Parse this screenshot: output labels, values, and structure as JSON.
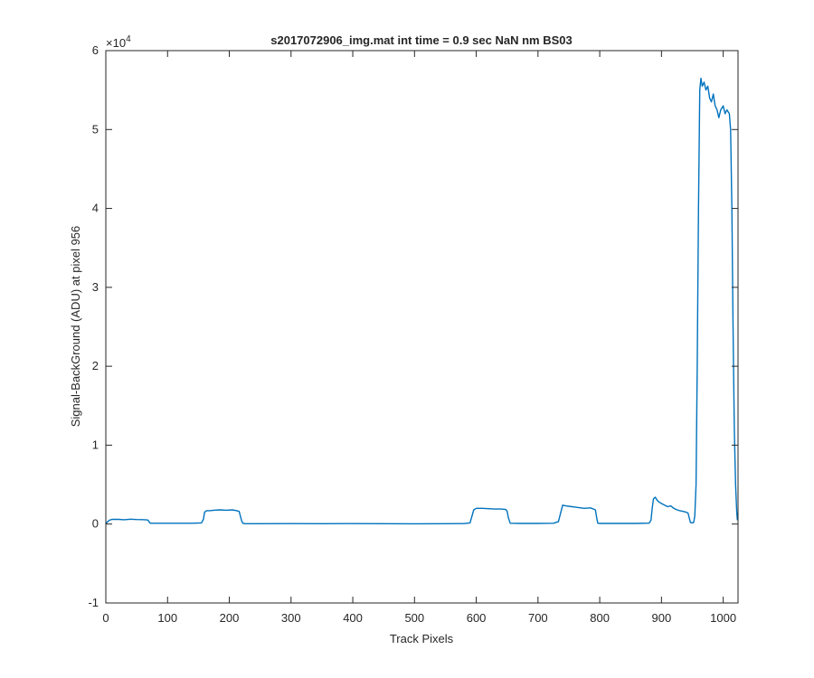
{
  "chart_data": {
    "type": "line",
    "title": "s2017072906_img.mat int time = 0.9 sec  NaN nm BS03",
    "xlabel": "Track Pixels",
    "ylabel": "Signal-BackGround (ADU) at pixel 956",
    "xlim": [
      0,
      1024
    ],
    "ylim": [
      -10000,
      60000
    ],
    "y_exponent_label": "×10",
    "y_exponent_power": "4",
    "xticks": [
      0,
      100,
      200,
      300,
      400,
      500,
      600,
      700,
      800,
      900,
      1000
    ],
    "xtick_labels": [
      "0",
      "100",
      "200",
      "300",
      "400",
      "500",
      "600",
      "700",
      "800",
      "900",
      "1000"
    ],
    "yticks": [
      -10000,
      0,
      10000,
      20000,
      30000,
      40000,
      50000,
      60000
    ],
    "ytick_labels": [
      "-1",
      "0",
      "1",
      "2",
      "3",
      "4",
      "5",
      "6"
    ],
    "grid": false,
    "line_color": "#0072BD",
    "series": [
      {
        "name": "",
        "x": [
          0,
          3,
          6,
          10,
          20,
          30,
          40,
          50,
          60,
          68,
          70,
          72,
          75,
          80,
          100,
          120,
          140,
          155,
          158,
          160,
          163,
          168,
          175,
          185,
          195,
          205,
          212,
          216,
          218,
          220,
          222,
          225,
          235,
          250,
          300,
          350,
          400,
          450,
          500,
          550,
          580,
          590,
          593,
          596,
          600,
          610,
          620,
          630,
          640,
          648,
          650,
          652,
          655,
          670,
          700,
          725,
          733,
          737,
          740,
          745,
          755,
          765,
          775,
          785,
          793,
          795,
          797,
          800,
          830,
          860,
          880,
          883,
          885,
          887,
          890,
          893,
          896,
          900,
          905,
          910,
          915,
          920,
          925,
          930,
          935,
          940,
          943,
          947,
          950,
          952,
          954,
          956,
          958,
          960,
          962,
          964,
          966,
          969,
          972,
          975,
          978,
          981,
          984,
          987,
          990,
          993,
          996,
          1000,
          1003,
          1006,
          1010,
          1012,
          1014,
          1016,
          1018,
          1020,
          1022,
          1023
        ],
        "y": [
          0,
          300,
          500,
          600,
          600,
          550,
          620,
          580,
          560,
          520,
          300,
          100,
          100,
          100,
          100,
          100,
          100,
          150,
          600,
          1500,
          1700,
          1700,
          1750,
          1800,
          1750,
          1800,
          1700,
          1600,
          1000,
          400,
          100,
          50,
          50,
          50,
          60,
          50,
          60,
          50,
          40,
          50,
          60,
          150,
          1000,
          1800,
          2000,
          2000,
          1950,
          1900,
          1900,
          1850,
          1600,
          800,
          100,
          80,
          80,
          100,
          300,
          1500,
          2400,
          2300,
          2200,
          2100,
          2000,
          2050,
          1800,
          800,
          100,
          80,
          80,
          80,
          120,
          500,
          2000,
          3200,
          3400,
          3000,
          2800,
          2600,
          2400,
          2200,
          2300,
          2000,
          1800,
          1700,
          1600,
          1500,
          1400,
          200,
          150,
          200,
          1000,
          5000,
          20000,
          40000,
          55000,
          56500,
          55500,
          56000,
          55000,
          55500,
          54000,
          53500,
          54500,
          53000,
          52500,
          51500,
          52500,
          53000,
          52000,
          52500,
          52000,
          50000,
          40000,
          25000,
          12000,
          5000,
          1500,
          500
        ]
      }
    ]
  }
}
